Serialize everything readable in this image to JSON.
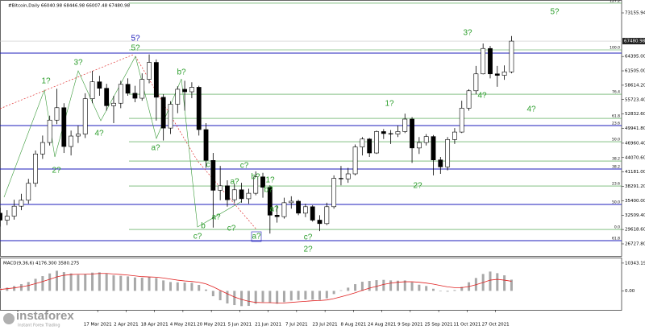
{
  "chart_data": {
    "type": "candlestick",
    "title": "#Bitcoin,Daily  66040.98 68446.98 66007.48 67480.98",
    "x": [
      0,
      4,
      8,
      12,
      16,
      20,
      24,
      28,
      32,
      36,
      40,
      44,
      48,
      52,
      56,
      60,
      64,
      68,
      72,
      76,
      80,
      84,
      88,
      92,
      96,
      100,
      104,
      108,
      112,
      116,
      120,
      124,
      128,
      132,
      136,
      140,
      144,
      148,
      152,
      156,
      160,
      164,
      168,
      172,
      176,
      180,
      184,
      188,
      192,
      196,
      200,
      204,
      208,
      212,
      216,
      220,
      224,
      228,
      232,
      236,
      240,
      244,
      248,
      252,
      256,
      260,
      264,
      268,
      272,
      276,
      280,
      284,
      288
    ],
    "open": [
      32900,
      31500,
      32300,
      34300,
      35500,
      38900,
      44800,
      47100,
      51600,
      54100,
      46300,
      48400,
      48800,
      55900,
      59300,
      58000,
      54500,
      55000,
      58800,
      57000,
      56000,
      59800,
      63200,
      56200,
      50000,
      54800,
      57800,
      57300,
      58200,
      49700,
      43500,
      37500,
      38400,
      35600,
      37600,
      35800,
      36900,
      40200,
      38100,
      32500,
      32200,
      35000,
      35300,
      32900,
      34200,
      31500,
      30800,
      34200,
      39900,
      39800,
      40800,
      46200,
      47800,
      45000,
      49300,
      48900,
      48800,
      49300,
      51800,
      46000,
      47100,
      48300,
      43600,
      42200,
      47700,
      49200,
      54000,
      57500,
      60900,
      66000,
      60900,
      60600,
      61300
    ],
    "high": [
      34000,
      33500,
      35600,
      36800,
      39800,
      45500,
      48500,
      52500,
      57900,
      55000,
      49500,
      50500,
      57000,
      61500,
      60500,
      58900,
      56500,
      59500,
      60000,
      58500,
      61000,
      64800,
      63800,
      56800,
      55400,
      58400,
      59500,
      59200,
      58500,
      51000,
      45000,
      42400,
      39500,
      38800,
      39000,
      37800,
      41300,
      41000,
      38500,
      34500,
      36000,
      36300,
      35600,
      34800,
      34500,
      32500,
      35000,
      40500,
      42400,
      42000,
      46700,
      48200,
      48000,
      49500,
      49800,
      49600,
      50500,
      52900,
      52200,
      48200,
      48800,
      48600,
      44200,
      48200,
      50000,
      55500,
      57800,
      62500,
      67000,
      66500,
      62500,
      62600,
      68500
    ],
    "low": [
      30200,
      30500,
      31600,
      33500,
      34800,
      38200,
      43800,
      46500,
      50800,
      45000,
      44500,
      47000,
      48000,
      55000,
      56500,
      53500,
      51000,
      54000,
      56500,
      55200,
      55500,
      59000,
      51500,
      47500,
      48800,
      53000,
      53500,
      56000,
      48500,
      42000,
      30000,
      35500,
      34200,
      35000,
      35000,
      34800,
      36500,
      36000,
      28800,
      31000,
      31800,
      33800,
      32500,
      32100,
      31200,
      29300,
      30500,
      33800,
      38500,
      39000,
      40500,
      44500,
      44200,
      44800,
      47800,
      46800,
      48200,
      49000,
      43000,
      44800,
      46500,
      40500,
      40800,
      41500,
      46800,
      49000,
      53500,
      56800,
      60800,
      60000,
      58300,
      59700,
      61000
    ],
    "close": [
      31500,
      32300,
      34300,
      35500,
      38900,
      44800,
      47100,
      51600,
      54100,
      46300,
      48400,
      48800,
      55900,
      59300,
      58000,
      54500,
      55000,
      58800,
      57000,
      56000,
      59800,
      63200,
      56200,
      50000,
      54800,
      57800,
      57300,
      58200,
      49700,
      43500,
      37500,
      38400,
      35600,
      37600,
      35800,
      36900,
      40200,
      38100,
      32500,
      32200,
      35000,
      35300,
      32900,
      34200,
      31500,
      30800,
      34200,
      39900,
      39800,
      40800,
      46200,
      47800,
      45000,
      49300,
      48900,
      48800,
      49300,
      51800,
      46000,
      47100,
      48300,
      43600,
      42200,
      47700,
      49200,
      54000,
      57500,
      60900,
      66000,
      60900,
      60600,
      61300,
      67480.98
    ],
    "up_color": "#ffffff",
    "down_color": "#000000",
    "xlim": [
      0,
      350
    ],
    "ylim": [
      24300,
      75745
    ],
    "xticks": [
      {
        "value": 55,
        "label": "17 Mar 2021"
      },
      {
        "value": 71,
        "label": "2 Apr 2021"
      },
      {
        "value": 87,
        "label": "18 Apr 2021"
      },
      {
        "value": 103,
        "label": "4 May 2021"
      },
      {
        "value": 119,
        "label": "20 May 2021"
      },
      {
        "value": 135,
        "label": "5 Jun 2021"
      },
      {
        "value": 151,
        "label": "21 Jun 2021"
      },
      {
        "value": 167,
        "label": "7 Jul 2021"
      },
      {
        "value": 183,
        "label": "23 Jul 2021"
      },
      {
        "value": 199,
        "label": "8 Aug 2021"
      },
      {
        "value": 215,
        "label": "24 Aug 2021"
      },
      {
        "value": 231,
        "label": "9 Sep 2021"
      },
      {
        "value": 247,
        "label": "25 Sep 2021"
      },
      {
        "value": 263,
        "label": "11 Oct 2021"
      },
      {
        "value": 279,
        "label": "27 Oct 2021"
      }
    ],
    "yticks": [
      73155.94,
      {
        "value": 64395,
        "label": "64395.00"
      },
      {
        "value": 61505,
        "label": "61505.00"
      },
      {
        "value": 58614.2,
        "label": "58614.20"
      },
      {
        "value": 55723.4,
        "label": "55723.40"
      },
      {
        "value": 52832.6,
        "label": "52832.60"
      },
      {
        "value": 49941.8,
        "label": "49941.80"
      },
      {
        "value": 46960.4,
        "label": "46960.40"
      },
      {
        "value": 44070.6,
        "label": "44070.60"
      },
      {
        "value": 41181,
        "label": "41181.00"
      },
      {
        "value": 38291.2,
        "label": "38291.20"
      },
      {
        "value": 35400,
        "label": "35400.00"
      },
      {
        "value": 32509.4,
        "label": "32509.40"
      },
      {
        "value": 29618.6,
        "label": "29618.60"
      },
      {
        "value": 26727.8,
        "label": "26727.80"
      }
    ],
    "last_price": 67480.98,
    "fib_levels": [
      {
        "price": 75100,
        "label": "127.2",
        "color": "#3a9a3a"
      },
      {
        "price": 65713,
        "label": "100.0",
        "color": "#3a9a3a"
      },
      {
        "price": 56815,
        "label": "76.4",
        "color": "#3a9a3a"
      },
      {
        "price": 51960,
        "label": "61.8",
        "color": "#3a9a3a"
      },
      {
        "price": 47268,
        "label": "50.0",
        "color": "#3a9a3a"
      },
      {
        "price": 43385,
        "label": "38.2",
        "color": "#3a9a3a"
      },
      {
        "price": 38369,
        "label": "23.6",
        "color": "#3a9a3a"
      },
      {
        "price": 29630,
        "label": "0.0",
        "color": "#3a9a3a"
      },
      {
        "price": 65066,
        "color": "#1d1dbb"
      },
      {
        "price": 50504,
        "label": "23.6",
        "color": "#1d1dbb"
      },
      {
        "price": 41767,
        "label": "38.2",
        "color": "#1d1dbb"
      },
      {
        "price": 34648,
        "label": "50.0",
        "color": "#1d1dbb"
      },
      {
        "price": 27366,
        "label": "61.8",
        "color": "#1d1dbb"
      }
    ],
    "annotations": [
      {
        "text": "5?",
        "color": "#1d1dbb"
      },
      {
        "text": "5?",
        "color": "#2a9d2a"
      },
      {
        "text": "3?",
        "color": "#2a9d2a"
      },
      {
        "text": "1?",
        "color": "#2a9d2a"
      },
      {
        "text": "4?",
        "color": "#2a9d2a"
      },
      {
        "text": "2?",
        "color": "#2a9d2a"
      },
      {
        "text": "b?",
        "color": "#2a9d2a"
      },
      {
        "text": "a?",
        "color": "#2a9d2a"
      },
      {
        "text": "c",
        "color": "#2a9d2a"
      },
      {
        "text": "b",
        "color": "#2a9d2a"
      },
      {
        "text": "c?",
        "color": "#2a9d2a"
      },
      {
        "text": "a?",
        "color": "#2a9d2a"
      },
      {
        "text": "c?",
        "color": "#2a9d2a"
      },
      {
        "text": "c?",
        "color": "#2a9d2a"
      },
      {
        "text": "a?",
        "color": "#2a9d2a"
      },
      {
        "text": "b?",
        "color": "#2a9d2a"
      },
      {
        "text": "1?",
        "color": "#2a9d2a"
      },
      {
        "text": "b?",
        "color": "#2a9d2a"
      },
      {
        "text": "a?",
        "color": "#2a9d2a"
      },
      {
        "text": "a?",
        "color": "#2a9d2a"
      },
      {
        "text": "c?",
        "color": "#2a9d2a"
      },
      {
        "text": "2?",
        "color": "#2a9d2a"
      },
      {
        "text": "1?",
        "color": "#2a9d2a"
      },
      {
        "text": "2?",
        "color": "#2a9d2a"
      },
      {
        "text": "3?",
        "color": "#2a9d2a"
      },
      {
        "text": "4?",
        "color": "#2a9d2a"
      },
      {
        "text": "4?",
        "color": "#2a9d2a"
      },
      {
        "text": "5?",
        "color": "#2a9d2a"
      }
    ],
    "macd": {
      "title": "MACD(9,36,6) 4176.300 3580.275",
      "histogram": [
        1000,
        1200,
        1800,
        2500,
        3300,
        4500,
        5500,
        6500,
        7500,
        7000,
        6500,
        6000,
        6300,
        6800,
        6900,
        6400,
        5800,
        5600,
        5400,
        5000,
        4900,
        5200,
        4800,
        3900,
        3300,
        3200,
        3100,
        3000,
        2200,
        500,
        -2000,
        -3500,
        -4700,
        -5300,
        -5700,
        -5600,
        -4800,
        -4200,
        -4500,
        -4800,
        -4200,
        -3600,
        -3400,
        -3200,
        -3300,
        -3400,
        -2800,
        -1200,
        200,
        1200,
        2500,
        3400,
        3700,
        4000,
        4100,
        3900,
        3800,
        3900,
        3200,
        2300,
        1800,
        800,
        -200,
        -300,
        300,
        1500,
        3200,
        4800,
        6300,
        7200,
        6600,
        5800,
        4176.3
      ],
      "signal": [
        500,
        800,
        1100,
        1500,
        2000,
        2700,
        3500,
        4300,
        5200,
        5800,
        6100,
        6200,
        6200,
        6300,
        6500,
        6500,
        6300,
        6100,
        5900,
        5600,
        5300,
        5200,
        5100,
        4800,
        4400,
        4000,
        3700,
        3500,
        3200,
        2600,
        1500,
        200,
        -1100,
        -2300,
        -3200,
        -3900,
        -4300,
        -4400,
        -4400,
        -4500,
        -4500,
        -4300,
        -4100,
        -3900,
        -3700,
        -3600,
        -3400,
        -2900,
        -2200,
        -1500,
        -700,
        200,
        1000,
        1700,
        2400,
        2900,
        3200,
        3400,
        3400,
        3200,
        2900,
        2500,
        2000,
        1500,
        1200,
        1200,
        1600,
        2300,
        3100,
        4000,
        4300,
        4000,
        3580.275
      ],
      "hist_color": "#a8a8a8",
      "signal_color": "#e02020",
      "ylim": [
        -7091,
        12116
      ],
      "yticks": [
        10343.191,
        {
          "value": 0,
          "label": "0.00"
        }
      ]
    },
    "logo": {
      "name": "instaforex",
      "tagline": "Instant Forex Trading"
    }
  }
}
